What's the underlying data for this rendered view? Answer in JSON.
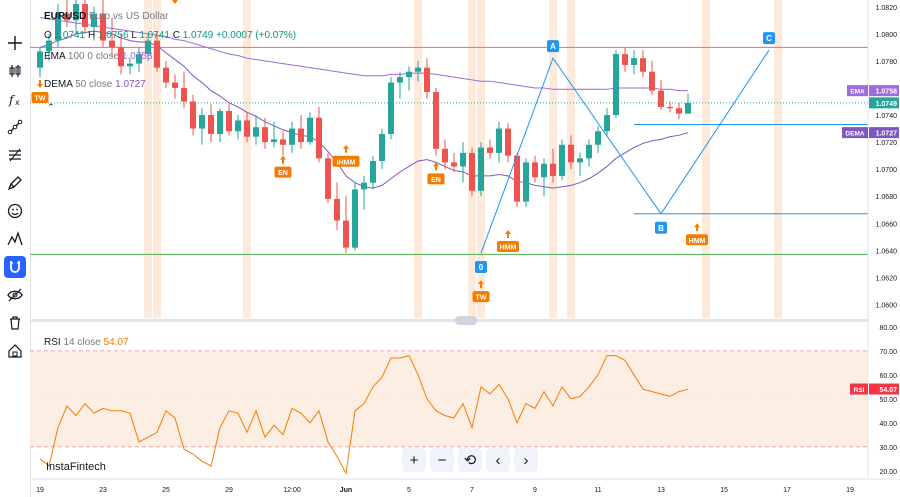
{
  "toolbar": [
    {
      "name": "crosshair-icon"
    },
    {
      "name": "candles-icon"
    },
    {
      "name": "fx-icon"
    },
    {
      "name": "trendline-icon"
    },
    {
      "name": "fib-icon"
    },
    {
      "name": "brush-icon"
    },
    {
      "name": "emoji-icon"
    },
    {
      "name": "pattern-icon"
    },
    {
      "name": "magnet-icon",
      "active": true
    },
    {
      "name": "eye-icon"
    },
    {
      "name": "trash-icon"
    },
    {
      "name": "lock-icon"
    }
  ],
  "legend": {
    "symbol": "EURUSD",
    "description": "Euro vs US Dollar",
    "o_label": "O",
    "o": "1.0741",
    "h_label": "H",
    "h": "1.0756",
    "l_label": "L",
    "l": "1.0741",
    "c_label": "C",
    "c": "1.0749",
    "change": "+0.0007 (+0.07%)",
    "ema_label": "EMA",
    "ema_params": "100 0 close",
    "ema_value": "1.0758",
    "dema_label": "DEMA",
    "dema_params": "50 close",
    "dema_value": "1.0727",
    "rsi_label": "RSI",
    "rsi_params": "14 close",
    "rsi_value": "54.07"
  },
  "branding": "InstaFintech",
  "controls": [
    "+",
    "−",
    "⟲",
    "‹",
    "›"
  ],
  "colors": {
    "up": "#26a69a",
    "down": "#ef5350",
    "ema": "#9c6bdc",
    "dema": "#7e57c2",
    "rsi": "#f57c00",
    "signal": "#f57c00",
    "pattern": "#2196f3",
    "red_line": "#f06292",
    "green_line": "#4caf50"
  },
  "chart_data": {
    "type": "candlestick",
    "x_labels": [
      {
        "i": 0,
        "text": "19"
      },
      {
        "i": 7,
        "text": "23"
      },
      {
        "i": 14,
        "text": "25"
      },
      {
        "i": 21,
        "text": "29"
      },
      {
        "i": 28,
        "text": "12:00"
      },
      {
        "i": 34,
        "text": "Jun"
      },
      {
        "i": 41,
        "text": "5"
      },
      {
        "i": 48,
        "text": "7"
      },
      {
        "i": 55,
        "text": "9"
      },
      {
        "i": 62,
        "text": "11"
      },
      {
        "i": 69,
        "text": "13"
      },
      {
        "i": 76,
        "text": "15"
      },
      {
        "i": 83,
        "text": "17"
      },
      {
        "i": 90,
        "text": "19"
      }
    ],
    "price_axis": {
      "min": 1.059,
      "max": 1.0825,
      "ticks": [
        "1.0820",
        "1.0800",
        "1.0780",
        "1.0760",
        "1.0740",
        "1.0720",
        "1.0700",
        "1.0680",
        "1.0660",
        "1.0640",
        "1.0620",
        "1.0600"
      ]
    },
    "candles": [
      [
        1.0775,
        1.079,
        1.0768,
        1.0787
      ],
      [
        1.0787,
        1.08,
        1.078,
        1.0795
      ],
      [
        1.0795,
        1.0822,
        1.079,
        1.0815
      ],
      [
        1.0815,
        1.083,
        1.0805,
        1.081
      ],
      [
        1.081,
        1.0828,
        1.08,
        1.0822
      ],
      [
        1.0822,
        1.083,
        1.08,
        1.0805
      ],
      [
        1.0805,
        1.082,
        1.0795,
        1.0815
      ],
      [
        1.0815,
        1.0825,
        1.079,
        1.0795
      ],
      [
        1.0795,
        1.0812,
        1.0783,
        1.079
      ],
      [
        1.079,
        1.08,
        1.077,
        1.0776
      ],
      [
        1.0776,
        1.0782,
        1.077,
        1.0778
      ],
      [
        1.0778,
        1.079,
        1.0772,
        1.0785
      ],
      [
        1.0785,
        1.08,
        1.078,
        1.0795
      ],
      [
        1.0795,
        1.0802,
        1.0772,
        1.0775
      ],
      [
        1.0775,
        1.078,
        1.076,
        1.0764
      ],
      [
        1.0764,
        1.077,
        1.0752,
        1.076
      ],
      [
        1.076,
        1.0772,
        1.0745,
        1.075
      ],
      [
        1.075,
        1.0755,
        1.0725,
        1.073
      ],
      [
        1.073,
        1.0745,
        1.0718,
        1.074
      ],
      [
        1.074,
        1.0748,
        1.072,
        1.0726
      ],
      [
        1.0726,
        1.0745,
        1.072,
        1.0743
      ],
      [
        1.0743,
        1.0748,
        1.0725,
        1.0728
      ],
      [
        1.0728,
        1.074,
        1.0722,
        1.0736
      ],
      [
        1.0736,
        1.0742,
        1.072,
        1.0724
      ],
      [
        1.0724,
        1.074,
        1.0718,
        1.0731
      ],
      [
        1.0731,
        1.0738,
        1.0715,
        1.072
      ],
      [
        1.072,
        1.0735,
        1.0716,
        1.0722
      ],
      [
        1.0722,
        1.0728,
        1.071,
        1.0718
      ],
      [
        1.0718,
        1.0735,
        1.0712,
        1.073
      ],
      [
        1.073,
        1.074,
        1.0715,
        1.072
      ],
      [
        1.072,
        1.0742,
        1.0718,
        1.0738
      ],
      [
        1.0738,
        1.0746,
        1.0705,
        1.0708
      ],
      [
        1.0708,
        1.0712,
        1.0675,
        1.0678
      ],
      [
        1.0678,
        1.069,
        1.0655,
        1.0662
      ],
      [
        1.0662,
        1.068,
        1.0638,
        1.0642
      ],
      [
        1.0642,
        1.069,
        1.064,
        1.0685
      ],
      [
        1.0685,
        1.0695,
        1.067,
        1.069
      ],
      [
        1.069,
        1.071,
        1.0685,
        1.0706
      ],
      [
        1.0706,
        1.073,
        1.07,
        1.0726
      ],
      [
        1.0726,
        1.0768,
        1.0722,
        1.0764
      ],
      [
        1.0764,
        1.0772,
        1.0752,
        1.0768
      ],
      [
        1.0768,
        1.0776,
        1.0758,
        1.0772
      ],
      [
        1.0772,
        1.078,
        1.0765,
        1.0775
      ],
      [
        1.0775,
        1.0782,
        1.0752,
        1.0757
      ],
      [
        1.0757,
        1.076,
        1.071,
        1.0715
      ],
      [
        1.0715,
        1.0722,
        1.07,
        1.0705
      ],
      [
        1.0705,
        1.0712,
        1.0698,
        1.0702
      ],
      [
        1.0702,
        1.072,
        1.069,
        1.0712
      ],
      [
        1.0712,
        1.0716,
        1.068,
        1.0684
      ],
      [
        1.0684,
        1.072,
        1.068,
        1.0716
      ],
      [
        1.0716,
        1.0722,
        1.0708,
        1.0712
      ],
      [
        1.0712,
        1.0735,
        1.0705,
        1.073
      ],
      [
        1.073,
        1.0734,
        1.0705,
        1.071
      ],
      [
        1.071,
        1.0712,
        1.0672,
        1.0676
      ],
      [
        1.0676,
        1.0708,
        1.0672,
        1.0705
      ],
      [
        1.0705,
        1.071,
        1.069,
        1.0694
      ],
      [
        1.0694,
        1.0708,
        1.068,
        1.0704
      ],
      [
        1.0704,
        1.0715,
        1.069,
        1.0695
      ],
      [
        1.0695,
        1.0722,
        1.0692,
        1.0718
      ],
      [
        1.0718,
        1.0725,
        1.07,
        1.0705
      ],
      [
        1.0705,
        1.0712,
        1.0695,
        1.0708
      ],
      [
        1.0708,
        1.0722,
        1.0702,
        1.0718
      ],
      [
        1.0718,
        1.0732,
        1.0712,
        1.0728
      ],
      [
        1.0728,
        1.0745,
        1.0725,
        1.074
      ],
      [
        1.074,
        1.0788,
        1.0738,
        1.0785
      ],
      [
        1.0785,
        1.079,
        1.0772,
        1.0777
      ],
      [
        1.0777,
        1.0788,
        1.077,
        1.0782
      ],
      [
        1.0782,
        1.0788,
        1.0768,
        1.0772
      ],
      [
        1.0772,
        1.078,
        1.0755,
        1.0758
      ],
      [
        1.0758,
        1.0766,
        1.0744,
        1.0746
      ],
      [
        1.0746,
        1.075,
        1.0742,
        1.0745
      ],
      [
        1.0745,
        1.0749,
        1.0737,
        1.0741
      ],
      [
        1.0741,
        1.0756,
        1.0741,
        1.0749
      ]
    ],
    "ema_100": [
      1.0812,
      1.0811,
      1.081,
      1.0809,
      1.0808,
      1.0807,
      1.0806,
      1.0805,
      1.0804,
      1.0803,
      1.0802,
      1.0801,
      1.08,
      1.0799,
      1.0798,
      1.0796,
      1.0795,
      1.0793,
      1.0791,
      1.0789,
      1.0787,
      1.0785,
      1.0784,
      1.0782,
      1.0781,
      1.078,
      1.0779,
      1.0778,
      1.0777,
      1.0776,
      1.0775,
      1.0774,
      1.0773,
      1.0772,
      1.0771,
      1.077,
      1.0769,
      1.0769,
      1.0769,
      1.077,
      1.077,
      1.0771,
      1.0771,
      1.0771,
      1.077,
      1.0769,
      1.0768,
      1.0767,
      1.0766,
      1.0765,
      1.0765,
      1.0764,
      1.0763,
      1.0762,
      1.0761,
      1.076,
      1.076,
      1.0759,
      1.0759,
      1.0759,
      1.0759,
      1.0759,
      1.0759,
      1.0759,
      1.076,
      1.076,
      1.076,
      1.076,
      1.076,
      1.0759,
      1.0759,
      1.0758,
      1.0758
    ],
    "dema_50": [
      1.079,
      1.0792,
      1.0795,
      1.0797,
      1.08,
      1.0801,
      1.0802,
      1.0801,
      1.08,
      1.0797,
      1.0795,
      1.0794,
      1.0794,
      1.0791,
      1.0786,
      1.0781,
      1.0776,
      1.0769,
      1.0764,
      1.0758,
      1.0754,
      1.0749,
      1.0746,
      1.0742,
      1.0739,
      1.0735,
      1.0732,
      1.0729,
      1.0727,
      1.0725,
      1.0724,
      1.072,
      1.0713,
      1.0705,
      1.0695,
      1.069,
      1.0687,
      1.0686,
      1.0688,
      1.0693,
      1.0698,
      1.0702,
      1.0706,
      1.0707,
      1.0705,
      1.0702,
      1.0699,
      1.0698,
      1.0695,
      1.0695,
      1.0695,
      1.0696,
      1.0695,
      1.0691,
      1.069,
      1.0688,
      1.0687,
      1.0686,
      1.0687,
      1.0688,
      1.069,
      1.0693,
      1.0697,
      1.0702,
      1.0708,
      1.0712,
      1.0716,
      1.0719,
      1.0721,
      1.0722,
      1.0724,
      1.0725,
      1.0727
    ],
    "rsi_14": [
      25,
      22,
      38,
      47,
      43,
      48,
      44,
      46,
      45,
      45,
      44,
      32,
      34,
      36,
      45,
      42,
      29,
      27,
      24,
      22,
      38,
      45,
      44,
      36,
      45,
      34,
      39,
      35,
      46,
      44,
      40,
      45,
      32,
      26,
      19,
      45,
      48,
      55,
      59,
      67,
      67,
      68,
      60,
      50,
      45,
      43,
      42,
      48,
      38,
      55,
      52,
      56,
      50,
      40,
      48,
      46,
      53,
      47,
      55,
      50,
      51,
      55,
      60,
      68,
      68,
      66,
      60,
      54,
      53,
      52,
      51,
      53,
      54
    ],
    "rsi_axis": {
      "min": 17,
      "max": 82,
      "ticks": [
        "80.00",
        "70.00",
        "60.00",
        "50.00",
        "40.00",
        "30.00",
        "20.00"
      ],
      "upper": 70,
      "lower": 30
    },
    "vertical_bands": [
      12,
      13,
      23,
      42,
      48,
      49,
      57,
      59,
      74,
      82
    ],
    "horizontal_lines": [
      {
        "price": 1.079,
        "color": "red"
      },
      {
        "price": 1.0637,
        "color": "green"
      },
      {
        "price": 1.0667,
        "color": "blue",
        "from": 66
      },
      {
        "price": 1.0733,
        "color": "blue",
        "from": 66
      }
    ],
    "pattern": {
      "points": [
        {
          "label": "0",
          "i": 49,
          "price": 1.0638
        },
        {
          "label": "A",
          "i": 57,
          "price": 1.0782
        },
        {
          "label": "B",
          "i": 69,
          "price": 1.0667
        },
        {
          "label": "C",
          "i": 81,
          "price": 1.0788
        }
      ]
    },
    "signals": [
      {
        "text": "TW",
        "i": 0,
        "price": 1.076,
        "dir": "down"
      },
      {
        "text": "",
        "i": 15,
        "price": 1.0822,
        "dir": "down"
      },
      {
        "text": "EN",
        "i": 27,
        "price": 1.071,
        "dir": "up"
      },
      {
        "text": "IHMM",
        "i": 34,
        "price": 1.0718,
        "dir": "up"
      },
      {
        "text": "EN",
        "i": 44,
        "price": 1.0705,
        "dir": "up"
      },
      {
        "text": "TW",
        "i": 49,
        "price": 1.0618,
        "dir": "up"
      },
      {
        "text": "HMM",
        "i": 52,
        "price": 1.0655,
        "dir": "up"
      },
      {
        "text": "HMM",
        "i": 73,
        "price": 1.066,
        "dir": "up"
      }
    ],
    "price_tags": [
      {
        "label": "EMA",
        "value": "1.0758",
        "color": "#9c6bdc"
      },
      {
        "label": "",
        "value": "1.0749",
        "color": "#26a69a"
      },
      {
        "label": "DEMA",
        "value": "1.0727",
        "color": "#7e57c2"
      }
    ],
    "rsi_tag": {
      "label": "RSI",
      "value": "54.07"
    }
  }
}
